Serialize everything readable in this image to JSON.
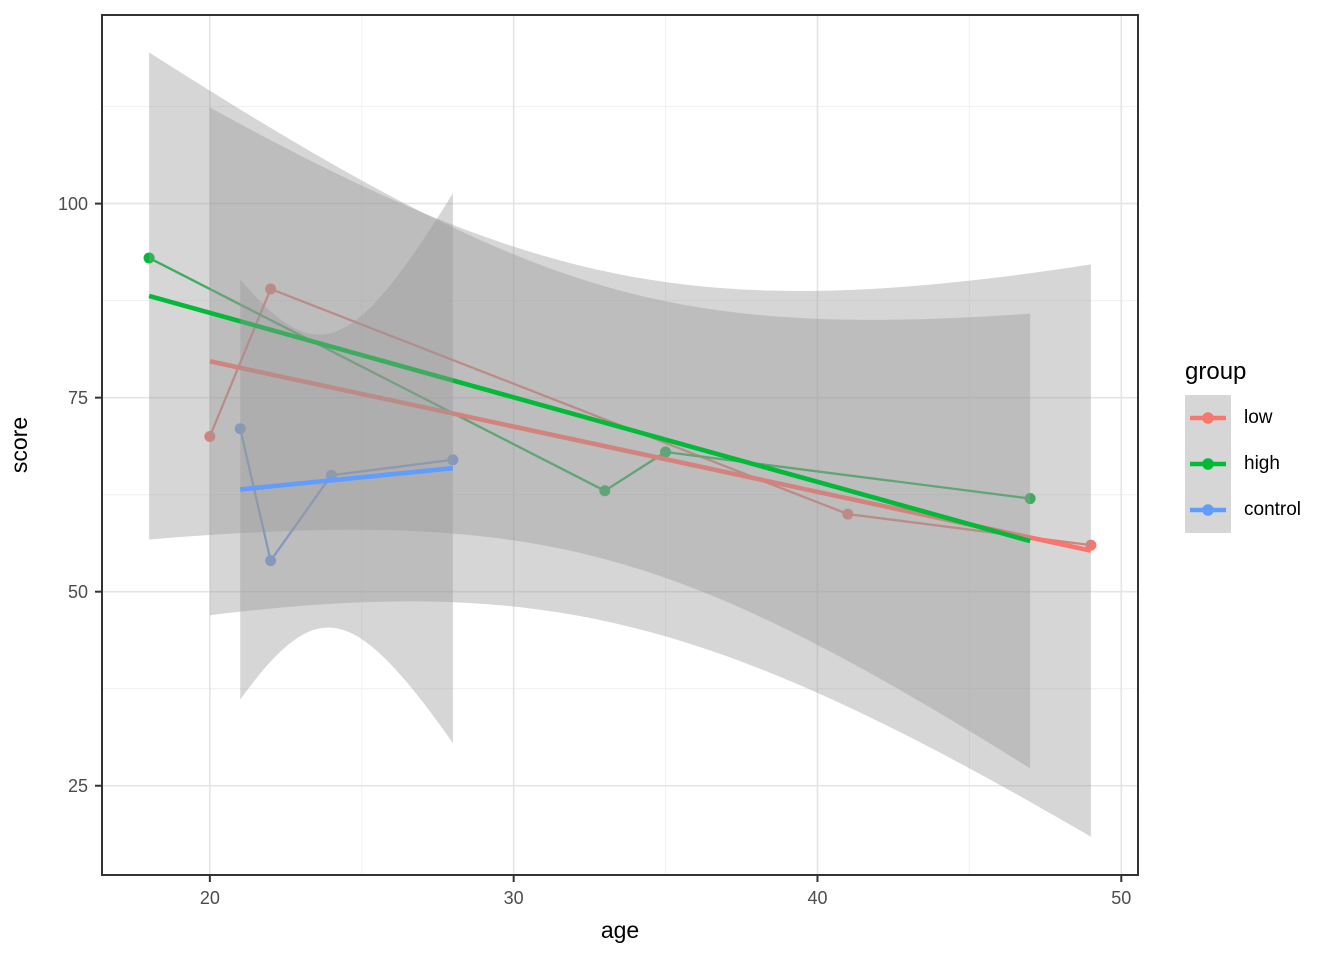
{
  "figure": {
    "background": "#FFFFFF"
  },
  "chart_data": {
    "type": "scatter",
    "layers": [
      "line",
      "point",
      "smooth"
    ],
    "title": "",
    "xlabel": "age",
    "ylabel": "score",
    "xlim": [
      16.45,
      50.55
    ],
    "ylim": [
      13.5,
      124.3
    ],
    "x_ticks": [
      20,
      30,
      40,
      50
    ],
    "y_ticks": [
      25,
      50,
      75,
      100
    ],
    "x_minor_ticks": [
      25,
      35,
      45
    ],
    "y_minor_ticks": [
      37.5,
      62.5,
      87.5,
      112.5
    ],
    "grid": "on",
    "legend_title": "group",
    "legend_position": "right",
    "smooth": {
      "method": "lm",
      "ci_level": 0.95,
      "ribbon_fill": "#999999",
      "ribbon_opacity": 0.4
    },
    "series": [
      {
        "name": "low",
        "color": "#F8766D",
        "points": [
          [
            20,
            70
          ],
          [
            22,
            89
          ],
          [
            41,
            60
          ],
          [
            49,
            56
          ]
        ]
      },
      {
        "name": "high",
        "color": "#00BA38",
        "points": [
          [
            18,
            93
          ],
          [
            33,
            63
          ],
          [
            35,
            68
          ],
          [
            47,
            62
          ]
        ]
      },
      {
        "name": "control",
        "color": "#619CFF",
        "points": [
          [
            21,
            71
          ],
          [
            22,
            54
          ],
          [
            24,
            65
          ],
          [
            28,
            67
          ]
        ]
      }
    ]
  }
}
